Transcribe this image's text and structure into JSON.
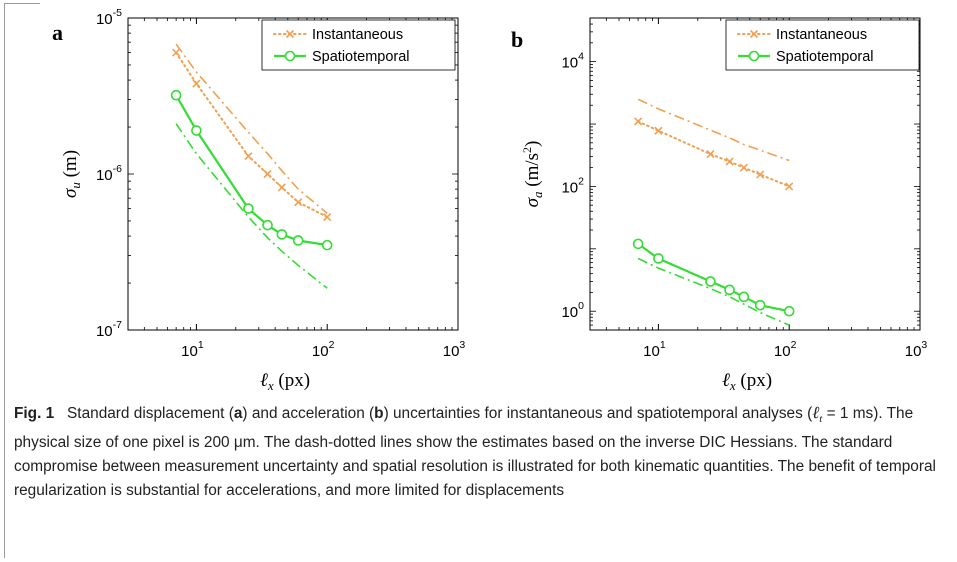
{
  "chart_data": [
    {
      "panel": "a",
      "type": "line",
      "xscale": "log",
      "yscale": "log",
      "xlim": [
        3,
        1000
      ],
      "ylim": [
        1e-07,
        1e-05
      ],
      "x_ticks": [
        10,
        100,
        1000
      ],
      "x_tick_labels": [
        [
          "10",
          "1"
        ],
        [
          "10",
          "2"
        ],
        [
          "10",
          "3"
        ]
      ],
      "y_ticks": [
        1e-07,
        1e-06,
        1e-05
      ],
      "y_tick_labels": [
        [
          "10",
          "-7"
        ],
        [
          "10",
          "-6"
        ],
        [
          "10",
          "-5"
        ]
      ],
      "xlabel": [
        "ℓ",
        "x",
        " (px)"
      ],
      "ylabel": [
        "σ",
        "u",
        " (m)"
      ],
      "legend_position": "top-right",
      "series": [
        {
          "name": "Instantaneous",
          "style": "dotted-x",
          "color": "#f0a050",
          "x": [
            7,
            10,
            25,
            35,
            45,
            60,
            100
          ],
          "y": [
            6e-06,
            3.8e-06,
            1.3e-06,
            1e-06,
            8.2e-07,
            6.6e-07,
            5.3e-07
          ]
        },
        {
          "name": "Spatiotemporal",
          "style": "solid-o",
          "color": "#33dd33",
          "x": [
            7,
            10,
            25,
            35,
            45,
            60,
            100
          ],
          "y": [
            3.2e-06,
            1.9e-06,
            6e-07,
            4.7e-07,
            4.1e-07,
            3.75e-07,
            3.5e-07
          ]
        },
        {
          "style": "dashdot",
          "color": "#f0a050",
          "x": [
            7,
            10,
            25,
            35,
            45,
            60,
            100
          ],
          "y": [
            6.8e-06,
            4.5e-06,
            1.85e-06,
            1.35e-06,
            1.05e-06,
            8e-07,
            5.6e-07
          ]
        },
        {
          "style": "dashdot",
          "color": "#33dd33",
          "x": [
            7,
            10,
            25,
            35,
            45,
            60,
            100
          ],
          "y": [
            2.1e-06,
            1.35e-06,
            5.3e-07,
            3.9e-07,
            3.2e-07,
            2.6e-07,
            1.85e-07
          ]
        }
      ]
    },
    {
      "panel": "b",
      "type": "line",
      "xscale": "log",
      "yscale": "log",
      "xlim": [
        3,
        1000
      ],
      "ylim": [
        0.5,
        50000
      ],
      "x_ticks": [
        10,
        100,
        1000
      ],
      "x_tick_labels": [
        [
          "10",
          "1"
        ],
        [
          "10",
          "2"
        ],
        [
          "10",
          "3"
        ]
      ],
      "y_ticks": [
        1,
        100,
        10000
      ],
      "y_tick_labels": [
        [
          "10",
          "0"
        ],
        [
          "10",
          "2"
        ],
        [
          "10",
          "4"
        ]
      ],
      "xlabel": [
        "ℓ",
        "x",
        " (px)"
      ],
      "ylabel": [
        "σ",
        "a",
        " (m/s",
        "2",
        ")"
      ],
      "legend_position": "top-right",
      "series": [
        {
          "name": "Instantaneous",
          "style": "dotted-x",
          "color": "#f0a050",
          "x": [
            7,
            10,
            25,
            35,
            45,
            60,
            100
          ],
          "y": [
            1100,
            780,
            330,
            250,
            200,
            155,
            100
          ]
        },
        {
          "name": "Spatiotemporal",
          "style": "solid-o",
          "color": "#33dd33",
          "x": [
            7,
            10,
            25,
            35,
            45,
            60,
            100
          ],
          "y": [
            12,
            7.0,
            3.0,
            2.2,
            1.7,
            1.25,
            1.0
          ]
        },
        {
          "style": "dashdot",
          "color": "#f0a050",
          "x": [
            7,
            10,
            25,
            35,
            45,
            60,
            100
          ],
          "y": [
            2500,
            1750,
            800,
            600,
            470,
            380,
            260
          ]
        },
        {
          "style": "dashdot",
          "color": "#33dd33",
          "x": [
            7,
            10,
            25,
            35,
            45,
            60,
            100
          ],
          "y": [
            7.0,
            4.9,
            2.3,
            1.7,
            1.3,
            0.95,
            0.6
          ]
        }
      ]
    }
  ],
  "caption": {
    "label": "Fig. 1",
    "seg1": "Standard displacement (",
    "a": "a",
    "seg2": ") and acceleration (",
    "b": "b",
    "seg3": ") uncertainties for instantaneous and spatiotemporal analyses (",
    "lt": "ℓ",
    "lt_sub": "t",
    "seg4": " = 1 ms). The physical size of one pixel is 200 μm. The dash-dotted lines show the estimates based on the inverse DIC Hessians. The standard compromise between measurement uncertainty and spatial resolution is illustrated for both kinematic quantities. The benefit of temporal regularization is substantial for accelerations, and more limited for displacements"
  }
}
